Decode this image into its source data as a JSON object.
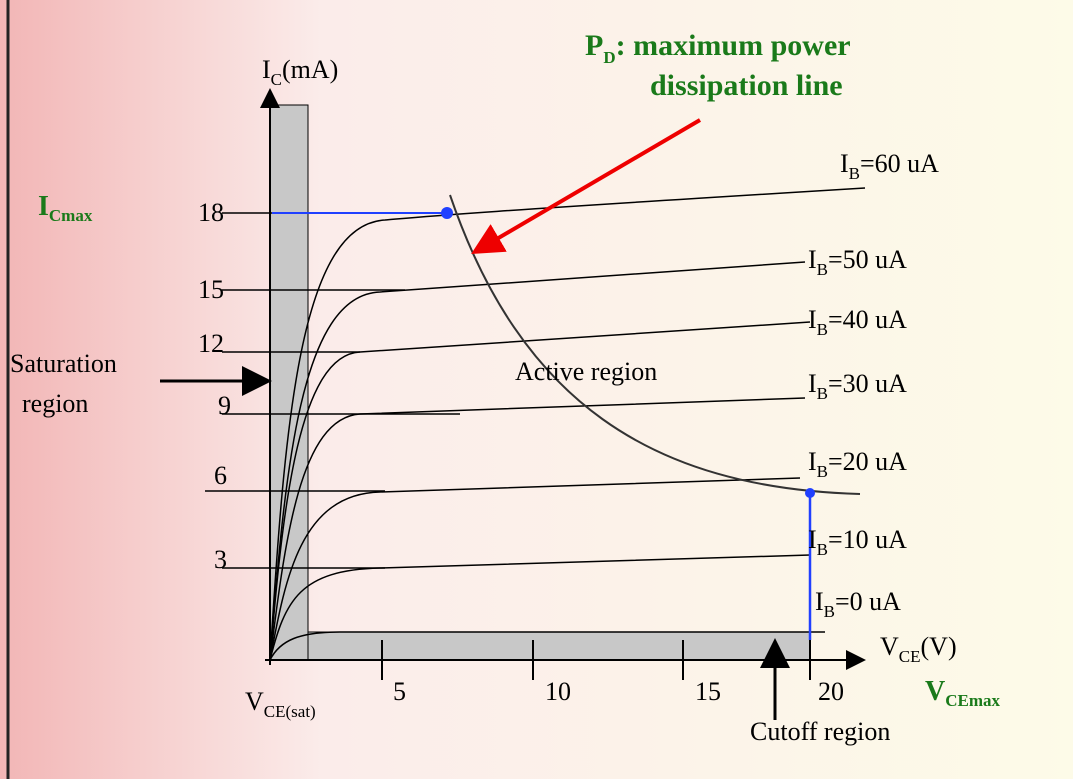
{
  "title": {
    "main": "P",
    "sub": "D",
    "rest": ": maximum power",
    "line2": "dissipation line"
  },
  "y_axis": {
    "main": "I",
    "sub": "C",
    "rest": "(mA)"
  },
  "x_axis": {
    "main": "V",
    "sub": "CE",
    "rest": "(V)"
  },
  "y_ticks": [
    18,
    15,
    12,
    9,
    6,
    3
  ],
  "x_ticks": [
    5,
    10,
    15,
    20
  ],
  "ic_max": {
    "main": "I",
    "sub": "Cmax"
  },
  "vce_max": {
    "main": "V",
    "sub": "CEmax"
  },
  "vce_sat": {
    "main": "V",
    "sub": "CE(sat)"
  },
  "curves": [
    {
      "main": "I",
      "sub": "B",
      "rest": "=60 uA"
    },
    {
      "main": "I",
      "sub": "B",
      "rest": "=50 uA"
    },
    {
      "main": "I",
      "sub": "B",
      "rest": "=40 uA"
    },
    {
      "main": "I",
      "sub": "B",
      "rest": "=30 uA"
    },
    {
      "main": "I",
      "sub": "B",
      "rest": "=20 uA"
    },
    {
      "main": "I",
      "sub": "B",
      "rest": "=10 uA"
    },
    {
      "main": "I",
      "sub": "B",
      "rest": "=0 uA"
    }
  ],
  "regions": {
    "saturation": [
      "Saturation",
      "region"
    ],
    "active": "Active region",
    "cutoff": "Cutoff region"
  }
}
